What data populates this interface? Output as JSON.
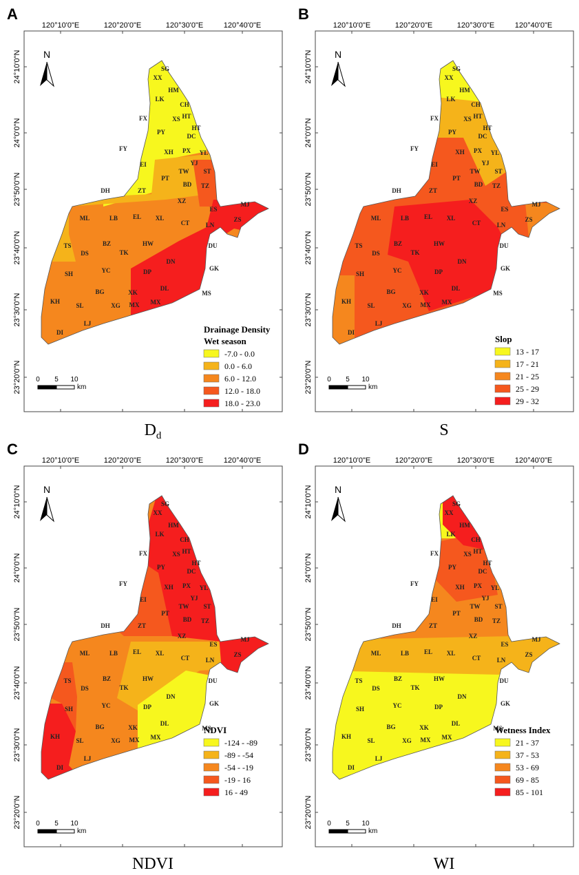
{
  "lon_labels": [
    "120°10'0\"E",
    "120°20'0\"E",
    "120°30'0\"E",
    "120°40'0\"E"
  ],
  "lat_labels": [
    "24°10'0\"N",
    "24°0'0\"N",
    "23°50'0\"N",
    "23°40'0\"N",
    "23°30'0\"N",
    "23°20'0\"N"
  ],
  "north": "N",
  "scale_ticks": [
    "0",
    "5",
    "10"
  ],
  "scale_unit": "km",
  "region_labels": [
    "SG",
    "XX",
    "HM",
    "LK",
    "CH",
    "XS",
    "HT",
    "FX",
    "HT",
    "PY",
    "DC",
    "FY",
    "XH",
    "PX",
    "YL",
    "EI",
    "YJ",
    "TW",
    "ST",
    "PT",
    "BD",
    "TZ",
    "DH",
    "ZT",
    "XZ",
    "ES",
    "MJ",
    "ML",
    "LB",
    "EL",
    "XL",
    "CT",
    "LN",
    "ZS",
    "TS",
    "BZ",
    "HW",
    "DU",
    "DS",
    "TK",
    "DN",
    "YC",
    "GK",
    "SH",
    "DP",
    "DL",
    "XK",
    "MS",
    "BG",
    "KH",
    "SL",
    "XG",
    "MX",
    "MX",
    "LJ",
    "DI"
  ],
  "panels": [
    {
      "letter": "A",
      "caption": "D",
      "caption_sub": "d",
      "legend_title": [
        "Drainage Density",
        "Wet season"
      ],
      "legend": [
        {
          "label": "-7.0 - 0.0",
          "color": "#f7f71e"
        },
        {
          "label": "0.0 - 6.0",
          "color": "#f5b31a"
        },
        {
          "label": "6.0 - 12.0",
          "color": "#f5871e"
        },
        {
          "label": "12.0 - 18.0",
          "color": "#f5581e"
        },
        {
          "label": "18.0 - 23.0",
          "color": "#f51e1e"
        }
      ]
    },
    {
      "letter": "B",
      "caption": "S",
      "legend_title": [
        "Slop"
      ],
      "legend": [
        {
          "label": "13 - 17",
          "color": "#f7f71e"
        },
        {
          "label": "17 - 21",
          "color": "#f5b31a"
        },
        {
          "label": "21 - 25",
          "color": "#f5871e"
        },
        {
          "label": "25 - 29",
          "color": "#f5581e"
        },
        {
          "label": "29 - 32",
          "color": "#f51e1e"
        }
      ]
    },
    {
      "letter": "C",
      "caption": "NDVI",
      "legend_title": [
        "NDVI"
      ],
      "legend": [
        {
          "label": "-124 - -89",
          "color": "#f7f71e"
        },
        {
          "label": "-89 - -54",
          "color": "#f5b31a"
        },
        {
          "label": "-54 - -19",
          "color": "#f5871e"
        },
        {
          "label": "-19 - 16",
          "color": "#f5581e"
        },
        {
          "label": "16 - 49",
          "color": "#f51e1e"
        }
      ]
    },
    {
      "letter": "D",
      "caption": "WI",
      "legend_title": [
        "Wetness Index"
      ],
      "legend": [
        {
          "label": "21 - 37",
          "color": "#f7f71e"
        },
        {
          "label": "37 - 53",
          "color": "#f5b31a"
        },
        {
          "label": "53 - 69",
          "color": "#f5871e"
        },
        {
          "label": "69 - 85",
          "color": "#f5581e"
        },
        {
          "label": "85 - 101",
          "color": "#f51e1e"
        }
      ]
    }
  ]
}
